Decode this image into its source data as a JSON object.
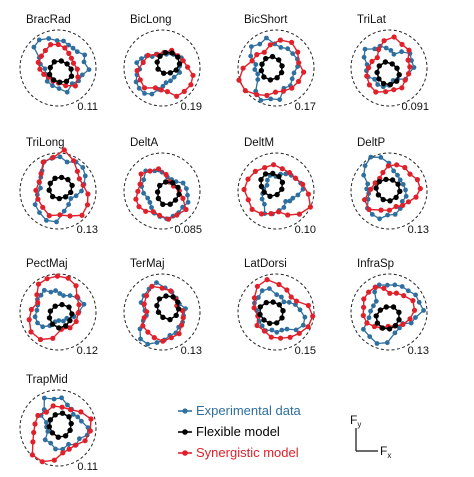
{
  "chart_data": {
    "type": "scatter",
    "grid": false,
    "legend_position": "bottom-center",
    "axes_glyph": {
      "y_label": "F",
      "y_sub": "y",
      "x_label": "F",
      "x_sub": "x"
    },
    "legend": [
      {
        "label": "Experimental data",
        "color": "#2f6f9f"
      },
      {
        "label": "Flexible model",
        "color": "#000000"
      },
      {
        "label": "Synergistic model",
        "color": "#e0202a"
      }
    ],
    "panels": [
      {
        "title": "BracRad",
        "value": "0.11"
      },
      {
        "title": "BicLong",
        "value": "0.19"
      },
      {
        "title": "BicShort",
        "value": "0.17"
      },
      {
        "title": "TriLat",
        "value": "0.091"
      },
      {
        "title": "TriLong",
        "value": "0.13"
      },
      {
        "title": "DeltA",
        "value": "0.085"
      },
      {
        "title": "DeltM",
        "value": "0.10"
      },
      {
        "title": "DeltP",
        "value": "0.13"
      },
      {
        "title": "PectMaj",
        "value": "0.12"
      },
      {
        "title": "TerMaj",
        "value": "0.13"
      },
      {
        "title": "LatDorsi",
        "value": "0.15"
      },
      {
        "title": "InfraSp",
        "value": "0.13"
      },
      {
        "title": "TrapMid",
        "value": "0.11"
      }
    ]
  }
}
